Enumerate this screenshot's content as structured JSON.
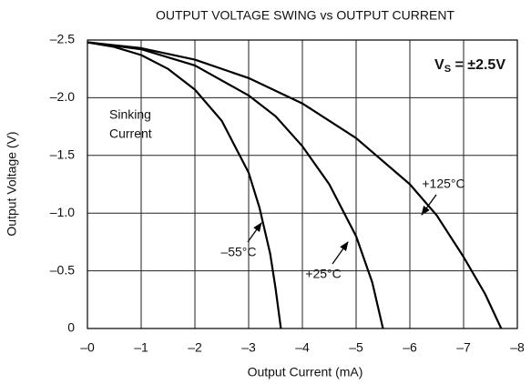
{
  "chart_data": {
    "type": "line",
    "title": "OUTPUT VOLTAGE SWING vs OUTPUT CURRENT",
    "x_label": "Output Current (mA)",
    "y_label": "Output Voltage (V)",
    "vs_label": [
      "V",
      "S",
      " = ±2.5V"
    ],
    "annotations": [
      "Sinking",
      "Current"
    ],
    "xlim": [
      0,
      -8
    ],
    "ylim": [
      0,
      -2.5
    ],
    "xticks": [
      {
        "value": 0,
        "label": "–0"
      },
      {
        "value": -1,
        "label": "–1"
      },
      {
        "value": -2,
        "label": "–2"
      },
      {
        "value": -3,
        "label": "–3"
      },
      {
        "value": -4,
        "label": "–4"
      },
      {
        "value": -5,
        "label": "–5"
      },
      {
        "value": -6,
        "label": "–6"
      },
      {
        "value": -7,
        "label": "–7"
      },
      {
        "value": -8,
        "label": "–8"
      }
    ],
    "yticks": [
      {
        "value": -2.5,
        "label": "–2.5"
      },
      {
        "value": -2.0,
        "label": "–2.0"
      },
      {
        "value": -1.5,
        "label": "–1.5"
      },
      {
        "value": -1.0,
        "label": "–1.0"
      },
      {
        "value": -0.5,
        "label": "–0.5"
      },
      0
    ],
    "grid": true,
    "series": [
      {
        "name": "–55°C",
        "color": "#000000",
        "x": [
          0,
          -0.5,
          -1,
          -1.5,
          -2,
          -2.5,
          -3,
          -3.2,
          -3.4,
          -3.5,
          -3.6
        ],
        "values": [
          -2.48,
          -2.44,
          -2.37,
          -2.25,
          -2.07,
          -1.8,
          -1.35,
          -1.05,
          -0.65,
          -0.35,
          0
        ]
      },
      {
        "name": "+25°C",
        "color": "#000000",
        "x": [
          0,
          -1,
          -2,
          -3,
          -3.5,
          -4,
          -4.5,
          -5,
          -5.3,
          -5.5
        ],
        "values": [
          -2.48,
          -2.42,
          -2.28,
          -2.02,
          -1.84,
          -1.58,
          -1.25,
          -0.8,
          -0.4,
          0
        ]
      },
      {
        "name": "+125°C",
        "color": "#000000",
        "x": [
          0,
          -1,
          -2,
          -3,
          -4,
          -5,
          -6,
          -6.5,
          -7,
          -7.4,
          -7.7
        ],
        "values": [
          -2.48,
          -2.43,
          -2.33,
          -2.17,
          -1.95,
          -1.65,
          -1.25,
          -0.98,
          -0.62,
          -0.3,
          0
        ]
      }
    ]
  }
}
